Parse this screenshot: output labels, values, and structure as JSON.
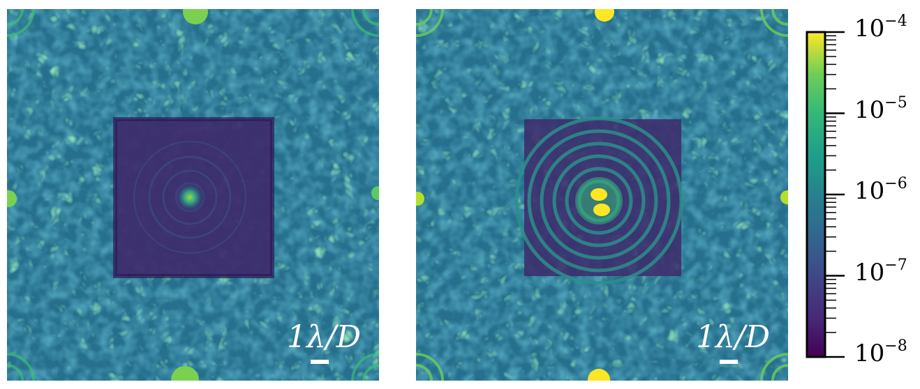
{
  "colors": {
    "background": "#2b7f8e",
    "dark_hole": "#3b1f62",
    "bright": "#fde725",
    "accent_green": "#7ad151"
  },
  "panels": [
    {
      "name": "left-panel",
      "scalebar_label": "1λ/D"
    },
    {
      "name": "right-panel",
      "scalebar_label": "1λ/D"
    }
  ],
  "colorbar": {
    "colormap": "viridis",
    "scale": "log",
    "range": [
      1e-08,
      0.0001
    ],
    "ticks": [
      {
        "base": "10",
        "exp": "−4"
      },
      {
        "base": "10",
        "exp": "−5"
      },
      {
        "base": "10",
        "exp": "−6"
      },
      {
        "base": "10",
        "exp": "−7"
      },
      {
        "base": "10",
        "exp": "−8"
      }
    ]
  }
}
